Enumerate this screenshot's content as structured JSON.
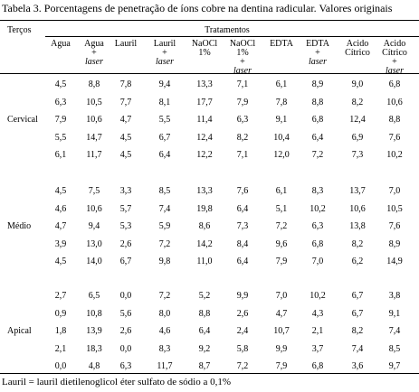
{
  "title": "Tabela 3. Porcentagens de penetração de íons cobre na dentina radicular. Valores originais",
  "table": {
    "row_header": "Terços",
    "group_header": "Tratamentos",
    "columns": [
      {
        "lines": [
          "Agua"
        ]
      },
      {
        "lines": [
          "Agua",
          "+"
        ],
        "em": "laser"
      },
      {
        "lines": [
          "Lauril"
        ]
      },
      {
        "lines": [
          "Lauril",
          "+"
        ],
        "em": "laser"
      },
      {
        "lines": [
          "NaOCl",
          "1%"
        ]
      },
      {
        "lines": [
          "NaOCl",
          "1%",
          "+"
        ],
        "em": "laser"
      },
      {
        "lines": [
          "EDTA"
        ]
      },
      {
        "lines": [
          "EDTA",
          "+"
        ],
        "em": "laser"
      },
      {
        "lines": [
          "Acido",
          "Cítrico"
        ]
      },
      {
        "lines": [
          "Acido",
          "Cítrico",
          "+"
        ],
        "em": "laser"
      }
    ],
    "groups": [
      {
        "label": "Cervical",
        "rows": [
          [
            "4,5",
            "8,8",
            "7,8",
            "9,4",
            "13,3",
            "7,1",
            "6,1",
            "8,9",
            "9,0",
            "6,8"
          ],
          [
            "6,3",
            "10,5",
            "7,7",
            "8,1",
            "17,7",
            "7,9",
            "7,8",
            "8,8",
            "8,2",
            "10,6"
          ],
          [
            "7,9",
            "10,6",
            "4,7",
            "5,5",
            "11,4",
            "6,3",
            "9,1",
            "6,8",
            "12,4",
            "8,8"
          ],
          [
            "5,5",
            "14,7",
            "4,5",
            "6,7",
            "12,4",
            "8,2",
            "10,4",
            "6,4",
            "6,9",
            "7,6"
          ],
          [
            "6,1",
            "11,7",
            "4,5",
            "6,4",
            "12,2",
            "7,1",
            "12,0",
            "7,2",
            "7,3",
            "10,2"
          ]
        ]
      },
      {
        "label": "Médio",
        "rows": [
          [
            "4,5",
            "7,5",
            "3,3",
            "8,5",
            "13,3",
            "7,6",
            "6,1",
            "8,3",
            "13,7",
            "7,0"
          ],
          [
            "4,6",
            "10,6",
            "5,7",
            "7,4",
            "19,8",
            "6,4",
            "5,1",
            "10,2",
            "10,6",
            "10,5"
          ],
          [
            "4,7",
            "9,4",
            "5,3",
            "5,9",
            "8,6",
            "7,3",
            "7,2",
            "6,3",
            "13,8",
            "7,6"
          ],
          [
            "3,9",
            "13,0",
            "2,6",
            "7,2",
            "14,2",
            "8,4",
            "9,6",
            "6,8",
            "8,2",
            "8,9"
          ],
          [
            "4,5",
            "14,0",
            "6,7",
            "9,8",
            "11,0",
            "6,4",
            "7,9",
            "7,0",
            "6,2",
            "14,9"
          ]
        ]
      },
      {
        "label": "Apical",
        "rows": [
          [
            "2,7",
            "6,5",
            "0,0",
            "7,2",
            "5,2",
            "9,9",
            "7,0",
            "10,2",
            "6,7",
            "3,8"
          ],
          [
            "0,9",
            "10,8",
            "5,6",
            "8,0",
            "8,8",
            "2,6",
            "4,7",
            "4,3",
            "6,7",
            "9,1"
          ],
          [
            "1,8",
            "13,9",
            "2,6",
            "4,6",
            "6,4",
            "2,4",
            "10,7",
            "2,1",
            "8,2",
            "7,4"
          ],
          [
            "2,1",
            "18,3",
            "0,0",
            "8,3",
            "9,2",
            "5,8",
            "9,9",
            "3,7",
            "7,4",
            "8,5"
          ],
          [
            "0,0",
            "4,8",
            "6,3",
            "11,7",
            "8,7",
            "7,2",
            "7,9",
            "6,8",
            "3,6",
            "9,7"
          ]
        ]
      }
    ]
  },
  "footnote": "Lauril = lauril dietilenoglicol éter sulfato de sódio a 0,1%"
}
